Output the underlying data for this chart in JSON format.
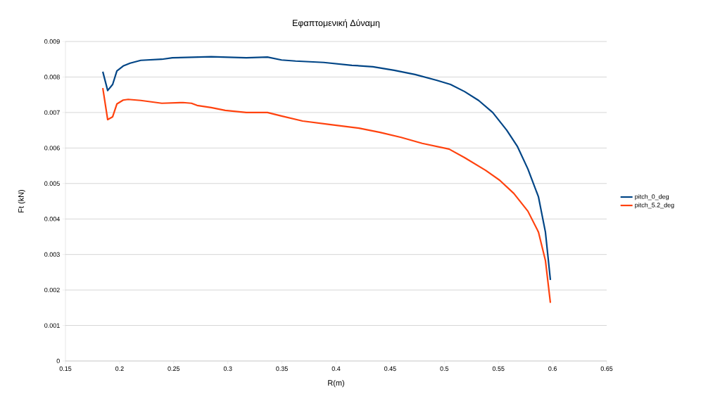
{
  "chart_data": {
    "type": "line",
    "title": "Εφαπτομενική Δύναμη",
    "xlabel": "R(m)",
    "ylabel": "Ft (kN)",
    "xlim": [
      0.15,
      0.65
    ],
    "xticks": [
      0.15,
      0.2,
      0.25,
      0.3,
      0.35,
      0.4,
      0.45,
      0.5,
      0.55,
      0.6,
      0.65
    ],
    "ylim": [
      0,
      0.009
    ],
    "yticks": [
      0,
      0.001,
      0.002,
      0.003,
      0.004,
      0.005,
      0.006,
      0.007,
      0.008,
      0.009
    ],
    "grid": "y",
    "legend": "right",
    "marker": "none",
    "line_style": "solid",
    "series": [
      {
        "name": "pitch_0_deg",
        "color": "#004586",
        "x": [
          0.1845,
          0.189,
          0.1936,
          0.1975,
          0.2033,
          0.2098,
          0.2196,
          0.239,
          0.2488,
          0.2846,
          0.3171,
          0.3366,
          0.3496,
          0.3626,
          0.3886,
          0.4146,
          0.434,
          0.4536,
          0.473,
          0.4927,
          0.5057,
          0.5187,
          0.5317,
          0.5447,
          0.5577,
          0.5674,
          0.5772,
          0.587,
          0.5934,
          0.598
        ],
        "values": [
          0.00815,
          0.00762,
          0.00779,
          0.00817,
          0.00831,
          0.00839,
          0.00847,
          0.0085,
          0.00854,
          0.00857,
          0.00854,
          0.00856,
          0.00848,
          0.00845,
          0.00841,
          0.00833,
          0.00829,
          0.00819,
          0.00807,
          0.00791,
          0.00779,
          0.00759,
          0.00734,
          0.007,
          0.0065,
          0.00605,
          0.00541,
          0.00462,
          0.00363,
          0.00228
        ]
      },
      {
        "name": "pitch_5.2_deg",
        "color": "#ff420e",
        "x": [
          0.1845,
          0.189,
          0.1936,
          0.1975,
          0.2033,
          0.2079,
          0.2196,
          0.239,
          0.2586,
          0.2664,
          0.2716,
          0.2846,
          0.2976,
          0.3171,
          0.3366,
          0.3496,
          0.3691,
          0.3951,
          0.4211,
          0.4406,
          0.4601,
          0.4796,
          0.5044,
          0.5187,
          0.5382,
          0.5512,
          0.5642,
          0.5772,
          0.587,
          0.5934,
          0.598
        ],
        "values": [
          0.00769,
          0.0068,
          0.00688,
          0.00724,
          0.00735,
          0.00737,
          0.00734,
          0.00726,
          0.00728,
          0.00726,
          0.0072,
          0.00714,
          0.00706,
          0.007,
          0.007,
          0.0069,
          0.00676,
          0.00666,
          0.00656,
          0.00644,
          0.0063,
          0.00613,
          0.00597,
          0.00573,
          0.00537,
          0.00509,
          0.00472,
          0.00422,
          0.00363,
          0.00283,
          0.00164
        ]
      }
    ]
  }
}
